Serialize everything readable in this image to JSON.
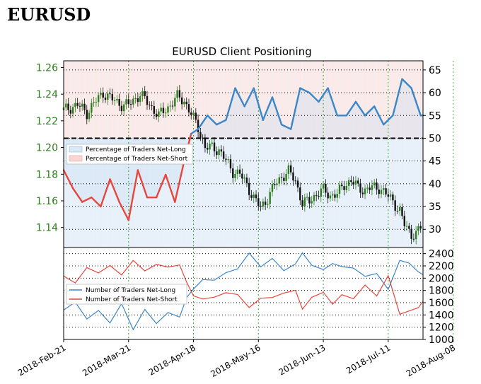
{
  "page": {
    "title": "EURUSD"
  },
  "chart_data": [
    {
      "type": "candlestick",
      "title": "EURUSD Client Positioning",
      "price_axis": {
        "ticks": [
          "1.26",
          "1.24",
          "1.22",
          "1.20",
          "1.18",
          "1.16",
          "1.14"
        ],
        "range": [
          1.125,
          1.265
        ]
      },
      "percent_axis": {
        "ticks": [
          "65",
          "60",
          "55",
          "50",
          "45",
          "40",
          "35",
          "30"
        ],
        "range": [
          26,
          67
        ]
      },
      "x_ticks": [
        "2018-Feb-21",
        "2018-Mar-21",
        "2018-Apr-18",
        "2018-May-16",
        "2018-Jun-13",
        "2018-Jul-11",
        "2018-Aug-08"
      ],
      "price_trend": [
        [
          0,
          1.228
        ],
        [
          6,
          1.232
        ],
        [
          10,
          1.226
        ],
        [
          13,
          1.233
        ],
        [
          17,
          1.241
        ],
        [
          21,
          1.236
        ],
        [
          25,
          1.232
        ],
        [
          28,
          1.232
        ],
        [
          33,
          1.24
        ],
        [
          37,
          1.232
        ],
        [
          41,
          1.224
        ],
        [
          45,
          1.23
        ],
        [
          49,
          1.238
        ],
        [
          52,
          1.235
        ],
        [
          55,
          1.225
        ],
        [
          58,
          1.215
        ],
        [
          61,
          1.2
        ],
        [
          64,
          1.2
        ],
        [
          67,
          1.198
        ],
        [
          70,
          1.19
        ],
        [
          73,
          1.182
        ],
        [
          76,
          1.18
        ],
        [
          79,
          1.172
        ],
        [
          82,
          1.162
        ],
        [
          85,
          1.155
        ],
        [
          88,
          1.162
        ],
        [
          91,
          1.172
        ],
        [
          94,
          1.178
        ],
        [
          97,
          1.182
        ],
        [
          100,
          1.175
        ],
        [
          103,
          1.158
        ],
        [
          106,
          1.16
        ],
        [
          109,
          1.165
        ],
        [
          112,
          1.168
        ],
        [
          115,
          1.164
        ],
        [
          118,
          1.165
        ],
        [
          121,
          1.172
        ],
        [
          124,
          1.175
        ],
        [
          127,
          1.17
        ],
        [
          130,
          1.168
        ],
        [
          133,
          1.17
        ],
        [
          136,
          1.17
        ],
        [
          139,
          1.165
        ],
        [
          142,
          1.16
        ],
        [
          145,
          1.152
        ],
        [
          147,
          1.142
        ],
        [
          150,
          1.135
        ],
        [
          152,
          1.135
        ],
        [
          154,
          1.14
        ]
      ],
      "percent_long": [
        [
          0,
          43
        ],
        [
          4,
          39
        ],
        [
          8,
          36
        ],
        [
          12,
          37
        ],
        [
          16,
          35
        ],
        [
          20,
          41
        ],
        [
          24,
          36
        ],
        [
          28,
          32
        ],
        [
          32,
          43
        ],
        [
          36,
          37
        ],
        [
          40,
          37
        ],
        [
          44,
          42
        ],
        [
          48,
          36
        ],
        [
          52,
          45
        ],
        [
          55,
          51
        ],
        [
          58,
          52
        ],
        [
          62,
          55
        ],
        [
          66,
          53
        ],
        [
          70,
          54
        ],
        [
          74,
          61
        ],
        [
          78,
          57
        ],
        [
          82,
          61
        ],
        [
          86,
          54
        ],
        [
          90,
          59
        ],
        [
          94,
          53
        ],
        [
          98,
          52
        ],
        [
          102,
          61
        ],
        [
          106,
          60
        ],
        [
          110,
          58
        ],
        [
          114,
          61
        ],
        [
          118,
          55
        ],
        [
          122,
          55
        ],
        [
          126,
          58
        ],
        [
          130,
          55
        ],
        [
          134,
          57
        ],
        [
          138,
          53
        ],
        [
          142,
          55
        ],
        [
          146,
          63
        ],
        [
          150,
          61
        ],
        [
          154,
          55
        ],
        [
          155,
          55
        ]
      ],
      "legend": [
        "Percentage of Traders Net-Long",
        "Percentage of Traders Net-Short"
      ],
      "colors": {
        "long": "#3a86c8",
        "short": "#e8453c",
        "long_fill": "#d9e8f6",
        "short_fill": "#f9d6d4",
        "up_candle": "#2e7d1e",
        "down_candle": "#111111"
      }
    },
    {
      "type": "line",
      "y_axis": {
        "ticks": [
          "2400",
          "2200",
          "2000",
          "1800",
          "1600",
          "1400",
          "1200",
          "1000"
        ],
        "range": [
          1000,
          2500
        ]
      },
      "series": [
        {
          "name": "Number of Traders Net-Long",
          "color": "#3a86c8",
          "points": [
            [
              0,
              1480
            ],
            [
              5,
              1600
            ],
            [
              10,
              1350
            ],
            [
              15,
              1450
            ],
            [
              20,
              1300
            ],
            [
              25,
              1550
            ],
            [
              30,
              1200
            ],
            [
              35,
              1450
            ],
            [
              40,
              1300
            ],
            [
              45,
              1400
            ],
            [
              50,
              1400
            ],
            [
              53,
              1650
            ],
            [
              56,
              1850
            ],
            [
              60,
              2000
            ],
            [
              65,
              1950
            ],
            [
              70,
              2100
            ],
            [
              75,
              2150
            ],
            [
              80,
              2400
            ],
            [
              85,
              2200
            ],
            [
              90,
              2300
            ],
            [
              95,
              2150
            ],
            [
              100,
              2200
            ],
            [
              103,
              2450
            ],
            [
              107,
              2250
            ],
            [
              112,
              2100
            ],
            [
              116,
              2200
            ],
            [
              120,
              2150
            ],
            [
              125,
              2200
            ],
            [
              130,
              2000
            ],
            [
              135,
              2100
            ],
            [
              140,
              1800
            ],
            [
              145,
              2300
            ],
            [
              149,
              2250
            ],
            [
              153,
              2100
            ],
            [
              155,
              2050
            ]
          ]
        },
        {
          "name": "Number of Traders Net-Short",
          "color": "#e8453c",
          "points": [
            [
              0,
              2000
            ],
            [
              5,
              1950
            ],
            [
              10,
              2150
            ],
            [
              15,
              2100
            ],
            [
              20,
              2200
            ],
            [
              25,
              2050
            ],
            [
              30,
              2300
            ],
            [
              35,
              2100
            ],
            [
              40,
              2250
            ],
            [
              45,
              2150
            ],
            [
              50,
              2250
            ],
            [
              53,
              1900
            ],
            [
              56,
              1750
            ],
            [
              60,
              1700
            ],
            [
              65,
              1650
            ],
            [
              70,
              1800
            ],
            [
              75,
              1700
            ],
            [
              80,
              1550
            ],
            [
              85,
              1650
            ],
            [
              90,
              1700
            ],
            [
              95,
              1750
            ],
            [
              100,
              1800
            ],
            [
              103,
              1500
            ],
            [
              107,
              1700
            ],
            [
              112,
              1750
            ],
            [
              116,
              1550
            ],
            [
              120,
              1700
            ],
            [
              125,
              1700
            ],
            [
              130,
              1850
            ],
            [
              135,
              1750
            ],
            [
              140,
              2000
            ],
            [
              145,
              1450
            ],
            [
              149,
              1500
            ],
            [
              153,
              1550
            ],
            [
              155,
              1650
            ]
          ]
        }
      ]
    }
  ]
}
